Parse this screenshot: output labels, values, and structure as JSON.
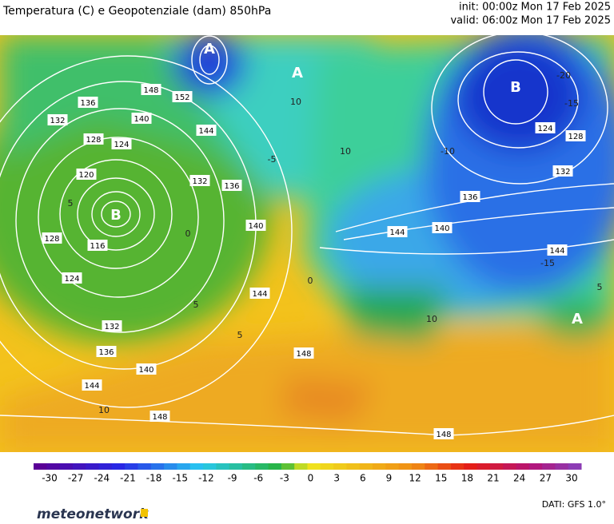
{
  "header": {
    "title": "Temperatura (C) e Geopotenziale (dam) 850hPa",
    "init": "init: 00:00z Mon 17 Feb 2025",
    "valid": "valid: 06:00z Mon 17 Feb 2025"
  },
  "map": {
    "pressure_centers": [
      "A",
      "A",
      "B",
      "B",
      "A"
    ],
    "geopotential_labels": [
      "148",
      "152",
      "136",
      "132",
      "140",
      "128",
      "124",
      "144",
      "120",
      "132",
      "136",
      "116",
      "124",
      "128",
      "140",
      "144",
      "132",
      "136",
      "140",
      "144",
      "148",
      "148",
      "148",
      "124",
      "128",
      "132",
      "136",
      "140",
      "144",
      "144"
    ],
    "temperature_labels": [
      "5",
      "0",
      "5",
      "5",
      "10",
      "10",
      "-10",
      "-15",
      "-20",
      "-15",
      "10",
      "-5",
      "0",
      "10",
      "5"
    ]
  },
  "colorbar": {
    "ticks": [
      "-30",
      "-27",
      "-24",
      "-21",
      "-18",
      "-15",
      "-12",
      "-9",
      "-6",
      "-3",
      "0",
      "3",
      "6",
      "9",
      "12",
      "15",
      "18",
      "21",
      "24",
      "27",
      "30"
    ]
  },
  "footer": {
    "brand": "meteonetwork",
    "source": "DATI: GFS 1.0°"
  }
}
